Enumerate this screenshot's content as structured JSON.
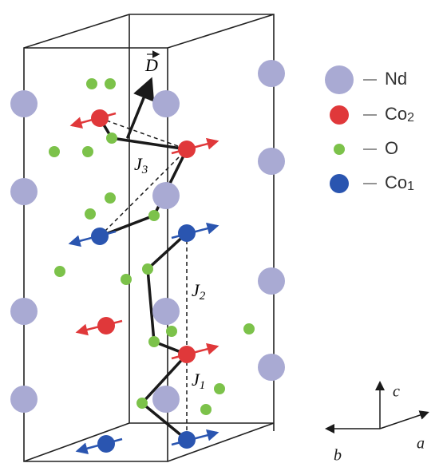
{
  "vector_label": "D",
  "couplings": [
    {
      "symbol": "J",
      "subscript": "3"
    },
    {
      "symbol": "J",
      "subscript": "2"
    },
    {
      "symbol": "J",
      "subscript": "1"
    }
  ],
  "legend": [
    {
      "label": "Nd",
      "subscript": null
    },
    {
      "label": "Co",
      "subscript": "2"
    },
    {
      "label": "O",
      "subscript": null
    },
    {
      "label": "Co",
      "subscript": "1"
    }
  ],
  "axes": {
    "c": "c",
    "b": "b",
    "a": "a"
  }
}
